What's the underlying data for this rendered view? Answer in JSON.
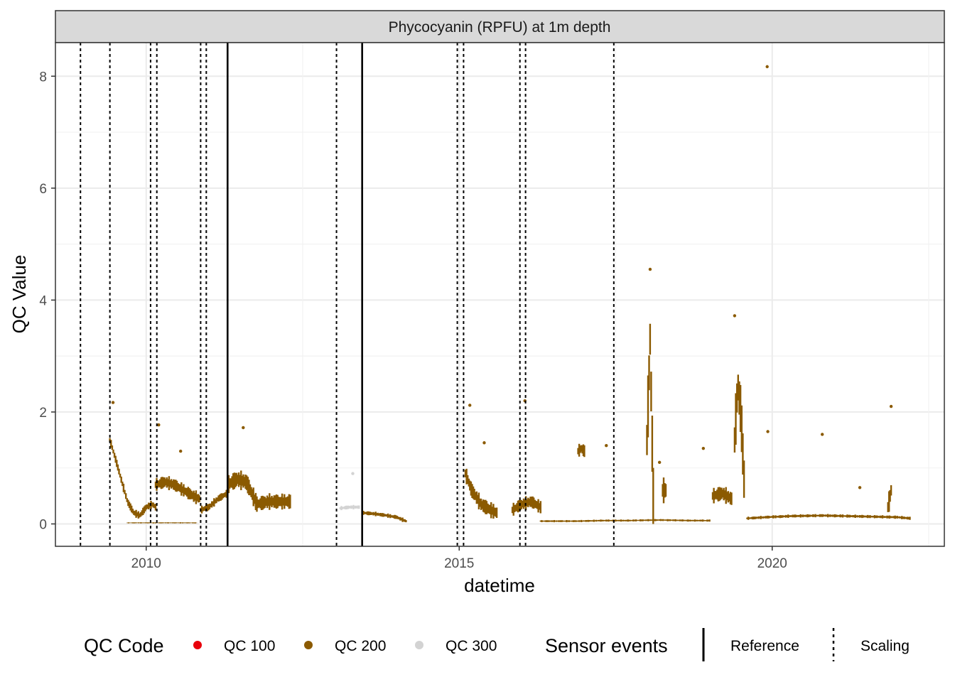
{
  "chart_data": {
    "type": "scatter",
    "panel_title": "Phycocyanin (RPFU) at 1m depth",
    "xlabel": "datetime",
    "ylabel": "QC Value",
    "xlim": [
      2008.55,
      2022.75
    ],
    "ylim": [
      -0.4,
      8.6
    ],
    "x_ticks": [
      2010,
      2015,
      2020
    ],
    "y_ticks": [
      0,
      2,
      4,
      6,
      8
    ],
    "grid": true,
    "legend_position": "bottom",
    "colors": {
      "QC 100": "#e8000b",
      "QC 200": "#8b5a00",
      "QC 300": "#d3d3d3"
    },
    "legend": {
      "qc_title": "QC Code",
      "qc_items": [
        "QC 100",
        "QC 200",
        "QC 300"
      ],
      "events_title": "Sensor events",
      "event_items": [
        "Reference",
        "Scaling"
      ]
    },
    "events": {
      "Reference": [
        2011.3,
        2013.45
      ],
      "Scaling": [
        2008.95,
        2009.42,
        2010.07,
        2010.17,
        2010.87,
        2010.96,
        2013.04,
        2014.97,
        2015.07,
        2015.97,
        2016.06,
        2017.47
      ]
    },
    "series": [
      {
        "name": "QC 200",
        "segments": [
          {
            "x": [
              2009.42,
              2009.5,
              2009.6,
              2009.7,
              2009.8,
              2009.9,
              2010.0,
              2010.1,
              2010.15
            ],
            "y": [
              1.5,
              1.2,
              0.8,
              0.4,
              0.2,
              0.15,
              0.3,
              0.35,
              0.3
            ],
            "spread": 0.15
          },
          {
            "x": [
              2010.15,
              2010.3,
              2010.45,
              2010.6,
              2010.75,
              2010.85
            ],
            "y": [
              0.7,
              0.75,
              0.7,
              0.6,
              0.5,
              0.45
            ],
            "spread": 0.25
          },
          {
            "x": [
              2009.7,
              2010.0,
              2010.4,
              2010.8
            ],
            "y": [
              0.02,
              0.02,
              0.02,
              0.02
            ],
            "spread": 0.02
          },
          {
            "x": [
              2010.87,
              2011.0,
              2011.15,
              2011.3
            ],
            "y": [
              0.25,
              0.3,
              0.45,
              0.55
            ],
            "spread": 0.15
          },
          {
            "x": [
              2011.3,
              2011.45,
              2011.6,
              2011.75
            ],
            "y": [
              0.7,
              0.8,
              0.75,
              0.4
            ],
            "spread": 0.35
          },
          {
            "x": [
              2011.75,
              2011.95,
              2012.1,
              2012.3
            ],
            "y": [
              0.35,
              0.4,
              0.4,
              0.4
            ],
            "spread": 0.3
          },
          {
            "x": [
              2013.45,
              2013.65,
              2013.85,
              2014.0,
              2014.15
            ],
            "y": [
              0.2,
              0.18,
              0.15,
              0.12,
              0.05
            ],
            "spread": 0.08
          },
          {
            "x": [
              2015.1,
              2015.2,
              2015.35,
              2015.5,
              2015.6
            ],
            "y": [
              0.9,
              0.6,
              0.35,
              0.25,
              0.2
            ],
            "spread": 0.3
          },
          {
            "x": [
              2015.85,
              2016.0,
              2016.15,
              2016.3
            ],
            "y": [
              0.25,
              0.35,
              0.4,
              0.3
            ],
            "spread": 0.25
          },
          {
            "x": [
              2016.3,
              2016.6,
              2016.9,
              2017.3,
              2017.7,
              2018.2,
              2018.7,
              2019.0
            ],
            "y": [
              0.05,
              0.05,
              0.05,
              0.06,
              0.06,
              0.07,
              0.06,
              0.06
            ],
            "spread": 0.04
          },
          {
            "x": [
              2016.9,
              2016.95,
              2017.0
            ],
            "y": [
              1.3,
              1.35,
              1.3
            ],
            "spread": 0.25
          },
          {
            "x": [
              2018.0,
              2018.05,
              2018.1
            ],
            "y": [
              1.5,
              3.3,
              0.5
            ],
            "spread": 1.2
          },
          {
            "x": [
              2018.25,
              2018.3
            ],
            "y": [
              0.6,
              0.6
            ],
            "spread": 0.5
          },
          {
            "x": [
              2019.05,
              2019.2,
              2019.35
            ],
            "y": [
              0.5,
              0.55,
              0.45
            ],
            "spread": 0.3
          },
          {
            "x": [
              2019.4,
              2019.45,
              2019.5,
              2019.55
            ],
            "y": [
              1.5,
              2.5,
              2.0,
              0.8
            ],
            "spread": 1.0
          },
          {
            "x": [
              2019.6,
              2019.9,
              2020.3,
              2020.8,
              2021.2,
              2021.6,
              2022.0,
              2022.2
            ],
            "y": [
              0.1,
              0.12,
              0.14,
              0.15,
              0.14,
              0.13,
              0.12,
              0.1
            ],
            "spread": 0.06
          },
          {
            "x": [
              2021.85,
              2021.9
            ],
            "y": [
              0.3,
              0.6
            ],
            "spread": 0.4
          }
        ],
        "points": [
          [
            2009.47,
            2.17
          ],
          [
            2010.2,
            1.77
          ],
          [
            2010.55,
            1.3
          ],
          [
            2011.55,
            1.72
          ],
          [
            2015.17,
            2.12
          ],
          [
            2015.4,
            1.45
          ],
          [
            2016.05,
            2.2
          ],
          [
            2017.35,
            1.4
          ],
          [
            2018.05,
            4.55
          ],
          [
            2018.2,
            1.1
          ],
          [
            2019.4,
            3.72
          ],
          [
            2019.92,
            8.17
          ],
          [
            2019.93,
            1.65
          ],
          [
            2021.9,
            2.1
          ],
          [
            2021.4,
            0.65
          ],
          [
            2020.8,
            1.6
          ],
          [
            2018.9,
            1.35
          ]
        ]
      },
      {
        "name": "QC 300",
        "segments": [
          {
            "x": [
              2013.1,
              2013.25,
              2013.4
            ],
            "y": [
              0.28,
              0.3,
              0.3
            ],
            "spread": 0.08
          }
        ],
        "points": [
          [
            2013.3,
            0.9
          ]
        ]
      },
      {
        "name": "QC 100",
        "segments": [],
        "points": []
      }
    ]
  }
}
